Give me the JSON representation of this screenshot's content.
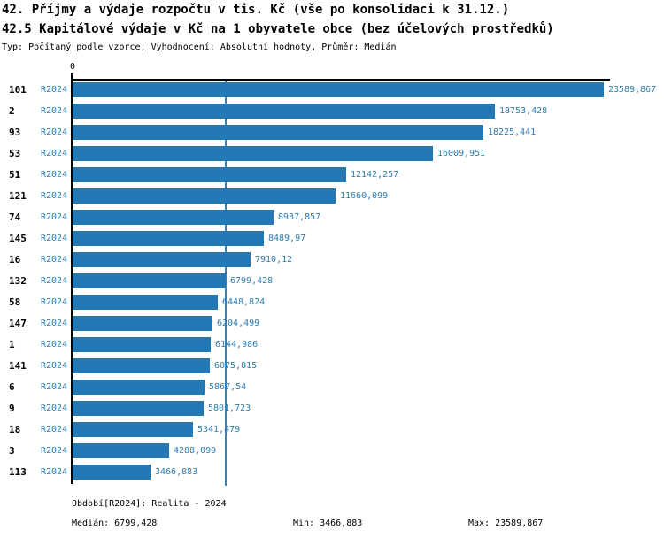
{
  "header": {
    "title1": "42. Příjmy a výdaje rozpočtu v tis. Kč (vše po konsolidaci k 31.12.)",
    "title2": "42.5 Kapitálové výdaje v Kč na 1 obyvatele obce (bez účelových prostředků)",
    "subtitle": "Typ: Počítaný podle vzorce, Vyhodnocení: Absolutní hodnoty, Průměr: Medián"
  },
  "chart_data": {
    "type": "bar",
    "orientation": "horizontal",
    "axis_zero_label": "0",
    "series_label": "R2024",
    "categories": [
      "101",
      "2",
      "93",
      "53",
      "51",
      "121",
      "74",
      "145",
      "16",
      "132",
      "58",
      "147",
      "1",
      "141",
      "6",
      "9",
      "18",
      "3",
      "113"
    ],
    "values": [
      23589.867,
      18753.428,
      18225.441,
      16009.951,
      12142.257,
      11660.099,
      8937.857,
      8489.97,
      7910.12,
      6799.428,
      6448.824,
      6204.499,
      6144.986,
      6075.815,
      5867.54,
      5801.723,
      5341.479,
      4288.099,
      3466.883
    ],
    "value_labels": [
      "23589,867",
      "18753,428",
      "18225,441",
      "16009,951",
      "12142,257",
      "11660,099",
      "8937,857",
      "8489,97",
      "7910,12",
      "6799,428",
      "6448,824",
      "6204,499",
      "6144,986",
      "6075,815",
      "5867,54",
      "5801,723",
      "5341,479",
      "4288,099",
      "3466,883"
    ],
    "median_value": 6799.428,
    "xlim": [
      0,
      24000
    ],
    "legend_position": "none",
    "grid": false,
    "colors": {
      "bar": "#2478b4",
      "label_text": "#2a7db8",
      "median_line": "#3583bb",
      "axis": "#000000"
    }
  },
  "footer": {
    "period": "Období[R2024]: Realita - 2024",
    "median": "Medián: 6799,428",
    "min": "Min: 3466,883",
    "max": "Max: 23589,867"
  }
}
